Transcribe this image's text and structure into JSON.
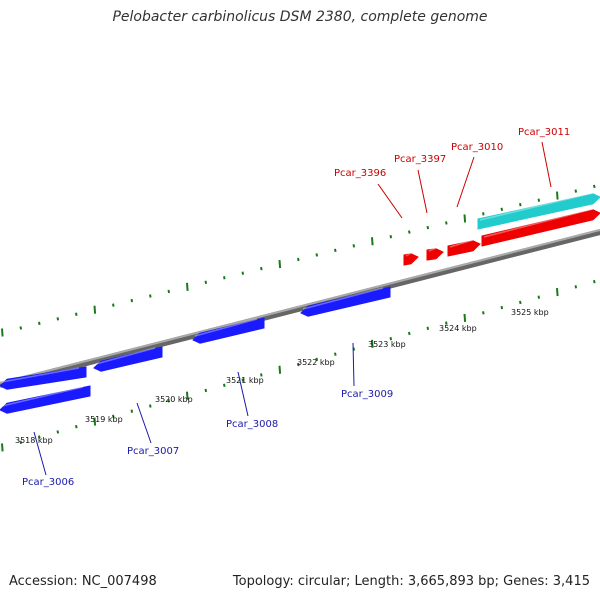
{
  "title": "Pelobacter carbinolicus DSM 2380, complete genome",
  "footer": {
    "accession": "Accession: NC_007498",
    "summary": "Topology: circular; Length: 3,665,893 bp; Genes: 3,415"
  },
  "colors": {
    "forward_gene": "#ee0000",
    "reverse_gene": "#1a1aff",
    "highlight_gene": "#22cccc",
    "backbone": "#888888",
    "ticks": "#1a7a1a"
  },
  "scale": {
    "unit": "kbp",
    "labels": [
      "3518 kbp",
      "3519 kbp",
      "3520 kbp",
      "3521 kbp",
      "3522 kbp",
      "3523 kbp",
      "3524 kbp",
      "3525 kbp"
    ]
  },
  "genes": [
    {
      "label": "Pcar_3396",
      "strand": "forward"
    },
    {
      "label": "Pcar_3397",
      "strand": "forward"
    },
    {
      "label": "Pcar_3010",
      "strand": "forward"
    },
    {
      "label": "Pcar_3011",
      "strand": "forward"
    },
    {
      "label": "Pcar_3006",
      "strand": "reverse"
    },
    {
      "label": "Pcar_3007",
      "strand": "reverse"
    },
    {
      "label": "Pcar_3008",
      "strand": "reverse"
    },
    {
      "label": "Pcar_3009",
      "strand": "reverse"
    }
  ]
}
